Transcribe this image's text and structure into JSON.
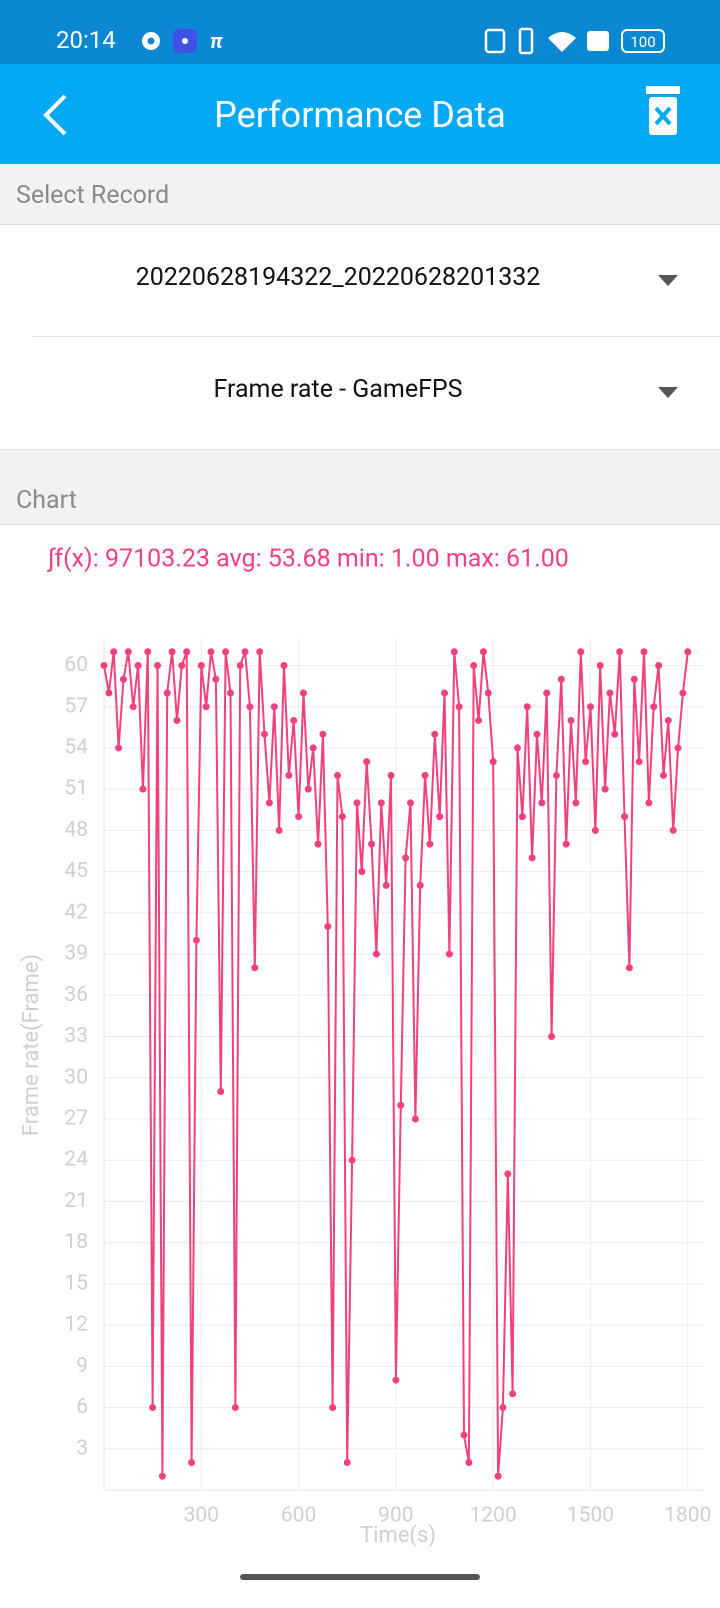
{
  "status_bar": {
    "time": "20:14",
    "battery": "100"
  },
  "app_bar": {
    "title": "Performance Data"
  },
  "record_section": {
    "header": "Select Record",
    "record": "20220628194322_20220628201332",
    "metric": "Frame rate - GameFPS"
  },
  "chart_section": {
    "header": "Chart"
  },
  "chart_data": {
    "type": "line",
    "stats": "∫f(x): 97103.23 avg: 53.68 min: 1.00 max: 61.00",
    "x_label": "Time(s)",
    "y_label": "Frame rate(Frame)",
    "color": "#f0407e",
    "grid": true,
    "xlim": [
      0,
      1850
    ],
    "ylim": [
      0,
      62
    ],
    "xticks": [
      300,
      600,
      900,
      1200,
      1500,
      1800
    ],
    "yticks": [
      3,
      6,
      9,
      12,
      15,
      18,
      21,
      24,
      27,
      30,
      33,
      36,
      39,
      42,
      45,
      48,
      51,
      54,
      57,
      60
    ],
    "x": [
      0,
      15,
      30,
      45,
      60,
      75,
      90,
      105,
      120,
      135,
      150,
      165,
      180,
      195,
      210,
      225,
      240,
      255,
      270,
      285,
      300,
      315,
      330,
      345,
      360,
      375,
      390,
      405,
      420,
      435,
      450,
      465,
      480,
      495,
      510,
      525,
      540,
      555,
      570,
      585,
      600,
      615,
      630,
      645,
      660,
      675,
      690,
      705,
      720,
      735,
      750,
      765,
      780,
      795,
      810,
      825,
      840,
      855,
      870,
      885,
      900,
      915,
      930,
      945,
      960,
      975,
      990,
      1005,
      1020,
      1035,
      1050,
      1065,
      1080,
      1095,
      1110,
      1125,
      1140,
      1155,
      1170,
      1185,
      1200,
      1215,
      1230,
      1245,
      1260,
      1275,
      1290,
      1305,
      1320,
      1335,
      1350,
      1365,
      1380,
      1395,
      1410,
      1425,
      1440,
      1455,
      1470,
      1485,
      1500,
      1515,
      1530,
      1545,
      1560,
      1575,
      1590,
      1605,
      1620,
      1635,
      1650,
      1665,
      1680,
      1695,
      1710,
      1725,
      1740,
      1755,
      1770,
      1785,
      1800
    ],
    "values": [
      60,
      58,
      61,
      54,
      59,
      61,
      57,
      60,
      51,
      61,
      6,
      60,
      1,
      58,
      61,
      56,
      60,
      61,
      2,
      40,
      60,
      57,
      61,
      59,
      29,
      61,
      58,
      6,
      60,
      61,
      57,
      38,
      61,
      55,
      50,
      57,
      48,
      60,
      52,
      56,
      49,
      58,
      51,
      54,
      47,
      55,
      41,
      6,
      52,
      49,
      2,
      24,
      50,
      45,
      53,
      47,
      39,
      50,
      44,
      52,
      8,
      28,
      46,
      50,
      27,
      44,
      52,
      47,
      55,
      49,
      58,
      39,
      61,
      57,
      4,
      2,
      60,
      56,
      61,
      58,
      53,
      1,
      6,
      23,
      7,
      54,
      49,
      57,
      46,
      55,
      50,
      58,
      33,
      52,
      59,
      47,
      56,
      50,
      61,
      53,
      57,
      48,
      60,
      51,
      58,
      55,
      61,
      49,
      38,
      59,
      53,
      61,
      50,
      57,
      60,
      52,
      56,
      48,
      54,
      58,
      61
    ]
  }
}
